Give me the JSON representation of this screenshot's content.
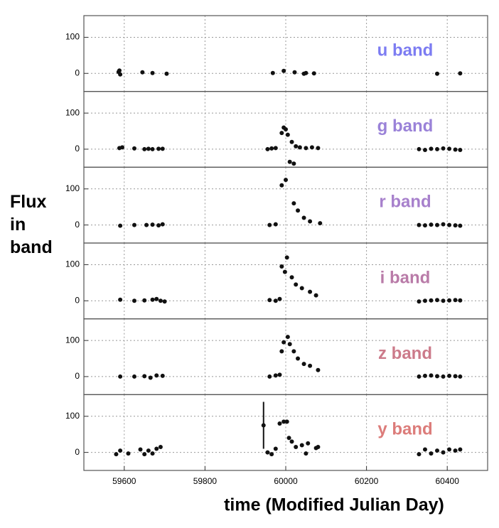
{
  "figure": {
    "ylabel": "Flux in band",
    "xlabel": "time (Modified Julian Day)",
    "xlim": [
      59500,
      60500
    ],
    "xticks": [
      59600,
      59800,
      60000,
      60200,
      60400
    ],
    "grid": true
  },
  "chart_data": [
    {
      "type": "scatter",
      "title": "u band",
      "title_color": "#7c7cf2",
      "color": "#111111",
      "ylim": [
        -50,
        160
      ],
      "yticks": [
        0,
        100
      ],
      "x": [
        59586,
        59588,
        59590,
        59645,
        59670,
        59705,
        59968,
        59995,
        60022,
        60045,
        60050,
        60070,
        60375,
        60432
      ],
      "values": [
        4,
        8,
        -3,
        3,
        1,
        -1,
        1,
        7,
        3,
        -1,
        1,
        0,
        -1,
        0
      ]
    },
    {
      "type": "scatter",
      "title": "g band",
      "title_color": "#9a82d8",
      "color": "#111111",
      "ylim": [
        -50,
        160
      ],
      "yticks": [
        0,
        100
      ],
      "x": [
        59588,
        59595,
        59625,
        59650,
        59660,
        59670,
        59685,
        59695,
        59955,
        59965,
        59975,
        59990,
        59995,
        60000,
        60005,
        60010,
        60015,
        60020,
        60025,
        60035,
        60050,
        60065,
        60080,
        60330,
        60345,
        60360,
        60375,
        60390,
        60405,
        60420,
        60432
      ],
      "values": [
        3,
        5,
        2,
        0,
        1,
        0,
        1,
        1,
        0,
        2,
        3,
        45,
        60,
        55,
        40,
        -35,
        20,
        -40,
        8,
        5,
        3,
        5,
        3,
        0,
        -2,
        1,
        0,
        2,
        1,
        -1,
        -2
      ]
    },
    {
      "type": "scatter",
      "title": "r band",
      "title_color": "#a780cc",
      "color": "#111111",
      "ylim": [
        -50,
        160
      ],
      "yticks": [
        0,
        100
      ],
      "x": [
        59590,
        59625,
        59655,
        59670,
        59685,
        59695,
        59960,
        59975,
        59990,
        60000,
        60020,
        60030,
        60045,
        60060,
        60085,
        60330,
        60345,
        60360,
        60375,
        60390,
        60405,
        60420,
        60432
      ],
      "values": [
        -2,
        0,
        0,
        1,
        -1,
        2,
        0,
        2,
        110,
        125,
        60,
        40,
        20,
        10,
        5,
        0,
        -1,
        1,
        0,
        2,
        0,
        -1,
        -2
      ]
    },
    {
      "type": "scatter",
      "title": "i band",
      "title_color": "#b97ba8",
      "color": "#111111",
      "ylim": [
        -50,
        160
      ],
      "yticks": [
        0,
        100
      ],
      "x": [
        59590,
        59625,
        59650,
        59670,
        59680,
        59690,
        59700,
        59960,
        59975,
        59985,
        59990,
        59998,
        60003,
        60015,
        60025,
        60040,
        60060,
        60075,
        60330,
        60345,
        60360,
        60375,
        60390,
        60405,
        60420,
        60432
      ],
      "values": [
        3,
        0,
        1,
        3,
        5,
        0,
        -2,
        2,
        0,
        5,
        95,
        80,
        120,
        65,
        45,
        35,
        25,
        15,
        -2,
        0,
        1,
        2,
        0,
        1,
        2,
        1
      ]
    },
    {
      "type": "scatter",
      "title": "z band",
      "title_color": "#cc7a8a",
      "color": "#111111",
      "ylim": [
        -50,
        160
      ],
      "yticks": [
        0,
        100
      ],
      "x": [
        59590,
        59625,
        59650,
        59665,
        59680,
        59695,
        59960,
        59975,
        59985,
        59990,
        59995,
        60005,
        60010,
        60020,
        60030,
        60045,
        60060,
        60080,
        60330,
        60345,
        60360,
        60375,
        60390,
        60405,
        60420,
        60432
      ],
      "values": [
        0,
        0,
        1,
        -3,
        3,
        2,
        0,
        3,
        5,
        70,
        95,
        110,
        90,
        70,
        50,
        35,
        30,
        18,
        0,
        2,
        3,
        1,
        0,
        2,
        1,
        0
      ]
    },
    {
      "type": "scatter",
      "title": "y band",
      "title_color": "#dc7c7a",
      "color": "#111111",
      "ylim": [
        -50,
        160
      ],
      "yticks": [
        0,
        100
      ],
      "x": [
        59580,
        59590,
        59610,
        59640,
        59650,
        59660,
        59670,
        59680,
        59690,
        59945,
        59955,
        59965,
        59975,
        59985,
        59995,
        60003,
        60008,
        60015,
        60025,
        60040,
        60050,
        60055,
        60075,
        60080,
        60330,
        60345,
        60360,
        60375,
        60390,
        60405,
        60420,
        60432
      ],
      "values": [
        -5,
        5,
        -3,
        8,
        -5,
        5,
        -3,
        10,
        15,
        75,
        0,
        -5,
        10,
        80,
        85,
        85,
        40,
        30,
        15,
        20,
        -3,
        25,
        12,
        15,
        -5,
        8,
        -3,
        5,
        0,
        8,
        5,
        8
      ],
      "errors": [
        null,
        null,
        null,
        null,
        null,
        null,
        null,
        null,
        null,
        65,
        null,
        null,
        null,
        null,
        null,
        null,
        null,
        null,
        null,
        null,
        null,
        null,
        null,
        null,
        null,
        null,
        null,
        null,
        null,
        null,
        null,
        null
      ]
    }
  ]
}
